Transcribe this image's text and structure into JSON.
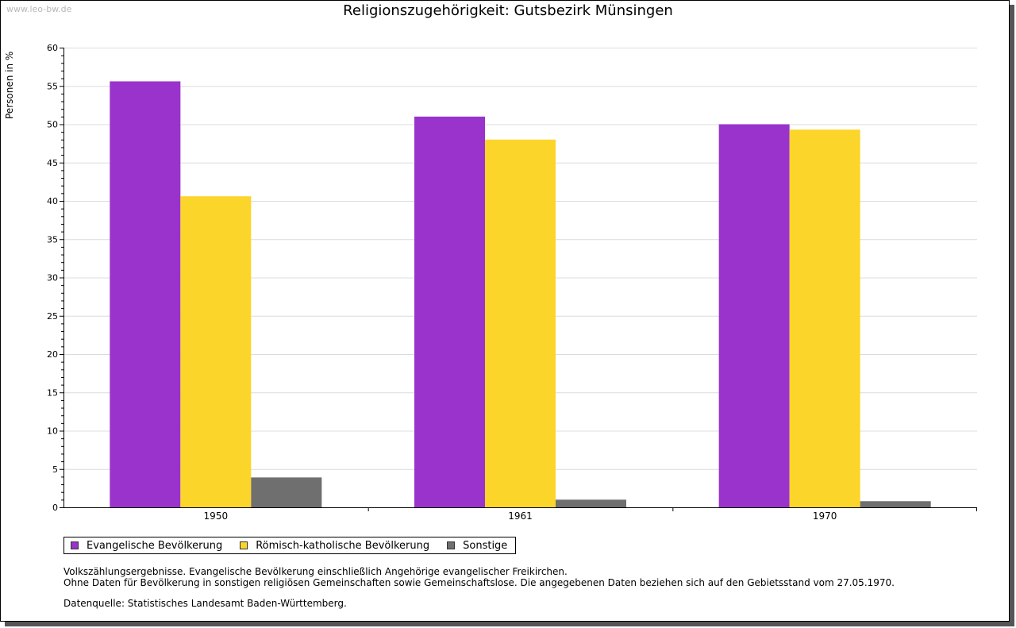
{
  "watermark": "www.leo-bw.de",
  "chart_data": {
    "type": "bar",
    "title": "Religionszugehörigkeit: Gutsbezirk Münsingen",
    "xlabel": "",
    "ylabel": "Personen in %",
    "ylim": [
      0,
      60
    ],
    "yticks": [
      0,
      5,
      10,
      15,
      20,
      25,
      30,
      35,
      40,
      45,
      50,
      55,
      60
    ],
    "grid": true,
    "legend_position": "bottom-left",
    "categories": [
      "1950",
      "1961",
      "1970"
    ],
    "series": [
      {
        "name": "Evangelische Bevölkerung",
        "color": "#9933cc",
        "values": [
          55.6,
          51.0,
          50.0
        ]
      },
      {
        "name": "Römisch-katholische Bevölkerung",
        "color": "#fcd52b",
        "values": [
          40.6,
          48.0,
          49.3
        ]
      },
      {
        "name": "Sonstige",
        "color": "#6f6f6f",
        "values": [
          3.9,
          1.0,
          0.8
        ]
      }
    ]
  },
  "notes": {
    "line1": "Volkszählungsergebnisse. Evangelische Bevölkerung einschließlich Angehörige evangelischer Freikirchen.",
    "line2": "Ohne Daten für Bevölkerung in sonstigen religiösen Gemeinschaften sowie Gemeinschaftslose. Die angegebenen Daten beziehen sich auf den Gebietsstand vom 27.05.1970.",
    "source": "Datenquelle: Statistisches Landesamt Baden-Württemberg."
  }
}
